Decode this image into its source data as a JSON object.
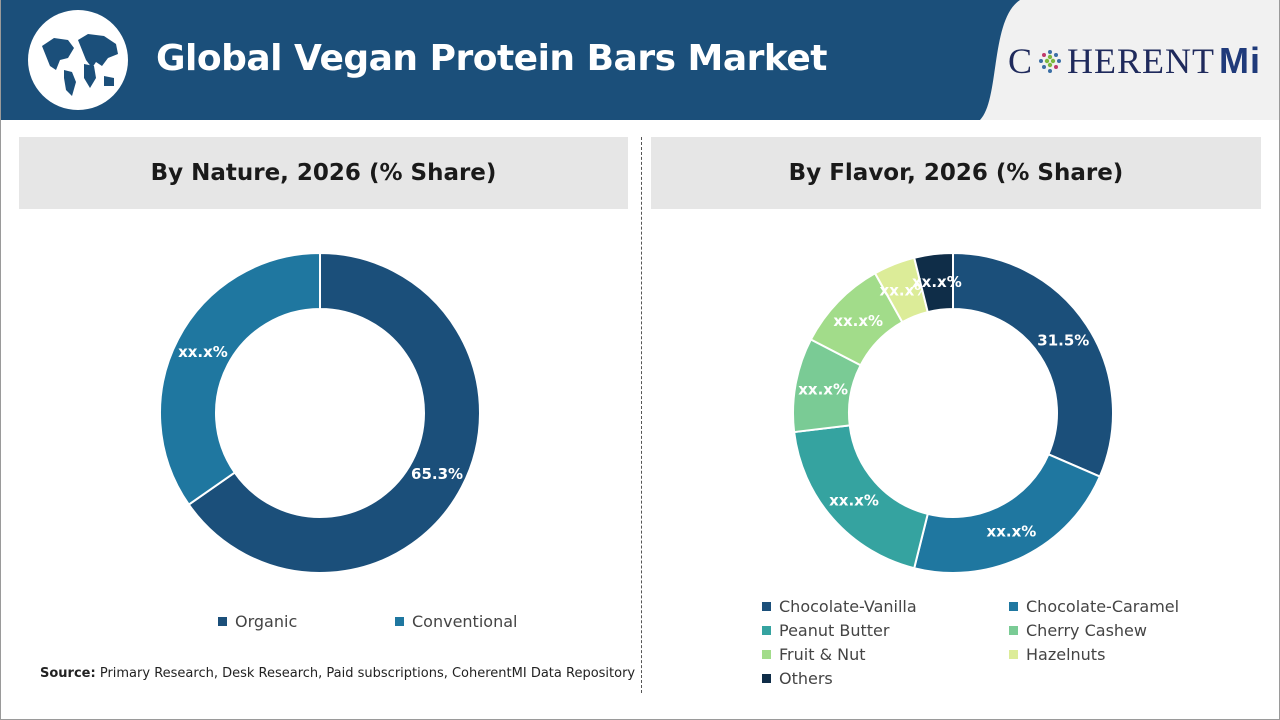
{
  "header": {
    "title": "Global Vegan Protein Bars Market",
    "logo_text": "CoherentMI"
  },
  "source": {
    "label": "Source:",
    "text": "Primary Research, Desk Research, Paid subscriptions, CoherentMI Data Repository"
  },
  "chart_data": [
    {
      "type": "pie",
      "style": "donut",
      "title": "By Nature, 2026 (% Share)",
      "categories": [
        "Organic",
        "Conventional"
      ],
      "values": [
        65.3,
        34.7
      ],
      "data_labels": [
        "65.3%",
        "xx.x%"
      ],
      "colors": [
        "#1b4f7a",
        "#1f77a0"
      ],
      "legend": "bottom"
    },
    {
      "type": "pie",
      "style": "donut",
      "title": "By Flavor, 2026 (% Share)",
      "categories": [
        "Chocolate-Vanilla",
        "Chocolate-Caramel",
        "Peanut Butter",
        "Cherry Cashew",
        "Fruit & Nut",
        "Hazelnuts",
        "Others"
      ],
      "values": [
        31.5,
        22.4,
        19.2,
        9.5,
        9.3,
        4.2,
        3.9
      ],
      "data_labels": [
        "31.5%",
        "xx.x%",
        "xx.x%",
        "xx.x%",
        "xx.x%",
        "xx.x%",
        "xx.x%"
      ],
      "colors": [
        "#1b4f7a",
        "#1f77a0",
        "#35a3a0",
        "#7acb95",
        "#a2dc8a",
        "#dcec98",
        "#0f2d48"
      ],
      "legend": "bottom"
    }
  ]
}
